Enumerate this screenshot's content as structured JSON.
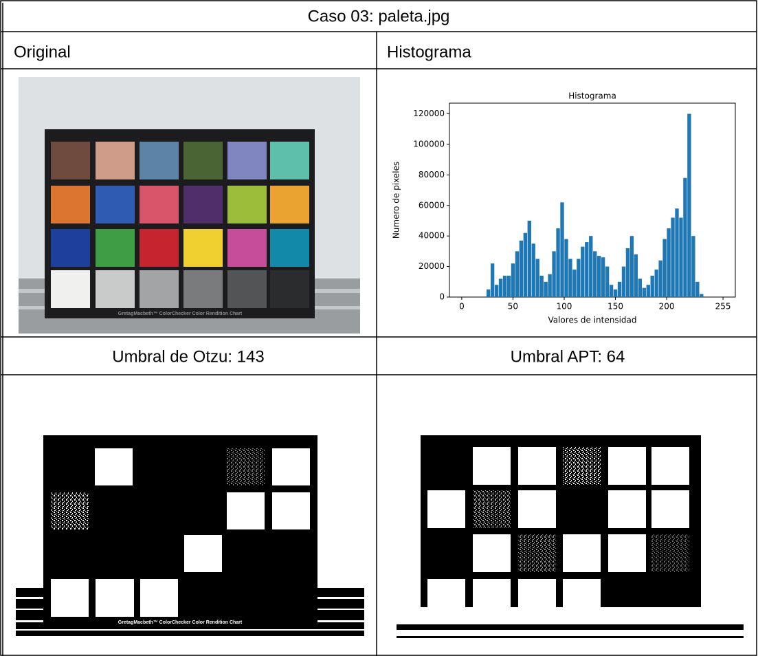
{
  "header": {
    "title": "Caso 03: paleta.jpg"
  },
  "table": {
    "rows": [
      [
        "Original",
        "Histograma"
      ],
      [
        "Umbral de Otzu: 143",
        "Umbral APT: 64"
      ]
    ]
  },
  "image_caption": "GretagMacbeth™ ColorChecker Color Rendition Chart",
  "histogram": {
    "type": "histogram",
    "title": "Histograma",
    "x_label": "Valores de intensidad",
    "y_label": "Numero de pixeles",
    "bins": [
      24,
      28,
      32,
      36,
      40,
      44,
      48,
      52,
      56,
      60,
      64,
      68,
      72,
      76,
      80,
      84,
      88,
      92,
      96,
      100,
      104,
      108,
      112,
      116,
      120,
      124,
      128,
      132,
      136,
      140,
      144,
      148,
      152,
      156,
      160,
      164,
      168,
      172,
      176,
      180,
      184,
      188,
      192,
      196,
      200,
      204,
      208,
      212,
      216,
      220,
      224,
      228,
      232,
      236
    ],
    "values": [
      5000,
      22000,
      8000,
      12000,
      14000,
      14000,
      22000,
      30000,
      37000,
      42000,
      50000,
      35000,
      25000,
      14000,
      10000,
      15000,
      30000,
      45000,
      62000,
      38000,
      25000,
      18000,
      25000,
      33000,
      36000,
      40000,
      30000,
      27000,
      26000,
      20000,
      8000,
      5000,
      10000,
      20000,
      32000,
      40000,
      28000,
      12000,
      6000,
      8000,
      14000,
      18000,
      24000,
      38000,
      45000,
      52000,
      58000,
      52000,
      78000,
      120000,
      40000,
      10000,
      2000
    ],
    "color": "#1f77b4",
    "xlim": [
      -12,
      267
    ],
    "ylim": [
      0,
      127000
    ],
    "xticks": [
      0,
      50,
      100,
      150,
      200,
      255
    ],
    "yticks": [
      0,
      20000,
      40000,
      60000,
      80000,
      100000,
      120000
    ]
  }
}
